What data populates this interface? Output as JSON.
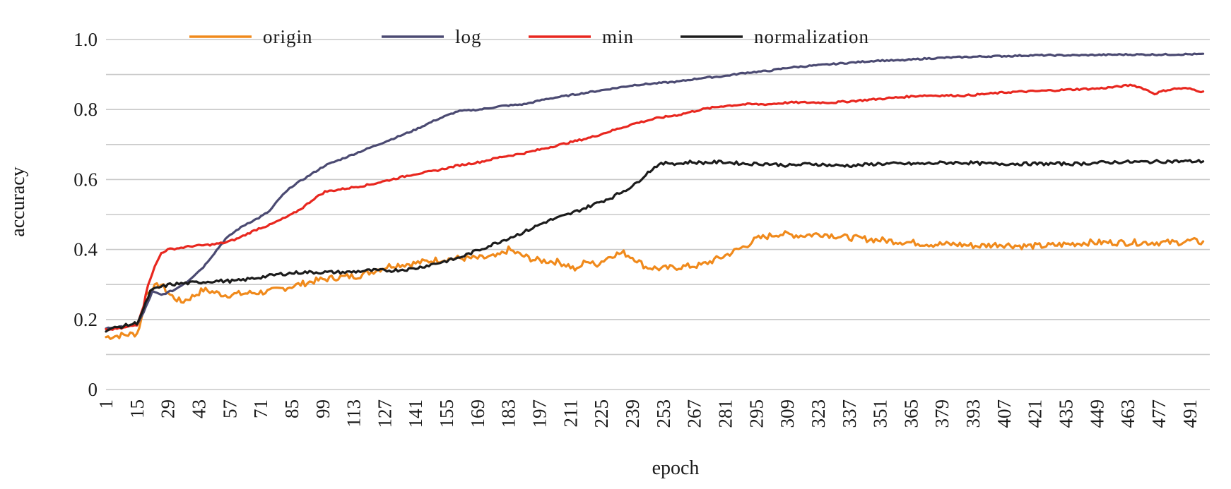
{
  "chart_data": {
    "type": "line",
    "xlabel": "epoch",
    "ylabel": "accuracy",
    "x_range": [
      1,
      500
    ],
    "ylim": [
      0,
      1.0
    ],
    "y_ticks": [
      0,
      0.2,
      0.4,
      0.6,
      0.8,
      1.0
    ],
    "y_tick_labels": [
      "0",
      "0.2",
      "0.4",
      "0.6",
      "0.8",
      "1.0"
    ],
    "x_tick_labels": [
      "1",
      "15",
      "29",
      "43",
      "57",
      "71",
      "85",
      "99",
      "113",
      "127",
      "141",
      "155",
      "169",
      "183",
      "197",
      "211",
      "225",
      "239",
      "253",
      "267",
      "281",
      "295",
      "309",
      "323",
      "337",
      "351",
      "365",
      "379",
      "393",
      "407",
      "421",
      "435",
      "449",
      "463",
      "477",
      "491"
    ],
    "grid": "horizontal",
    "legend_position": "top",
    "series": [
      {
        "name": "origin",
        "color": "#f08a1c",
        "points": [
          [
            1,
            0.15
          ],
          [
            8,
            0.155
          ],
          [
            15,
            0.16
          ],
          [
            17,
            0.2
          ],
          [
            19,
            0.27
          ],
          [
            22,
            0.29
          ],
          [
            26,
            0.3
          ],
          [
            30,
            0.27
          ],
          [
            35,
            0.25
          ],
          [
            40,
            0.265
          ],
          [
            45,
            0.285
          ],
          [
            55,
            0.27
          ],
          [
            65,
            0.275
          ],
          [
            75,
            0.28
          ],
          [
            85,
            0.295
          ],
          [
            95,
            0.31
          ],
          [
            105,
            0.32
          ],
          [
            115,
            0.325
          ],
          [
            125,
            0.345
          ],
          [
            130,
            0.355
          ],
          [
            140,
            0.36
          ],
          [
            150,
            0.37
          ],
          [
            160,
            0.375
          ],
          [
            170,
            0.375
          ],
          [
            178,
            0.38
          ],
          [
            183,
            0.4
          ],
          [
            188,
            0.385
          ],
          [
            195,
            0.37
          ],
          [
            205,
            0.365
          ],
          [
            210,
            0.355
          ],
          [
            214,
            0.34
          ],
          [
            218,
            0.37
          ],
          [
            222,
            0.355
          ],
          [
            226,
            0.37
          ],
          [
            230,
            0.385
          ],
          [
            235,
            0.39
          ],
          [
            240,
            0.375
          ],
          [
            245,
            0.35
          ],
          [
            252,
            0.345
          ],
          [
            260,
            0.35
          ],
          [
            270,
            0.355
          ],
          [
            280,
            0.38
          ],
          [
            290,
            0.41
          ],
          [
            295,
            0.43
          ],
          [
            305,
            0.445
          ],
          [
            315,
            0.44
          ],
          [
            325,
            0.445
          ],
          [
            335,
            0.435
          ],
          [
            345,
            0.43
          ],
          [
            355,
            0.425
          ],
          [
            365,
            0.42
          ],
          [
            375,
            0.415
          ],
          [
            385,
            0.415
          ],
          [
            395,
            0.41
          ],
          [
            405,
            0.415
          ],
          [
            415,
            0.41
          ],
          [
            425,
            0.41
          ],
          [
            435,
            0.415
          ],
          [
            445,
            0.42
          ],
          [
            455,
            0.42
          ],
          [
            465,
            0.42
          ],
          [
            475,
            0.42
          ],
          [
            485,
            0.42
          ],
          [
            492,
            0.425
          ],
          [
            497,
            0.42
          ]
        ]
      },
      {
        "name": "log",
        "color": "#4b4a72",
        "points": [
          [
            1,
            0.175
          ],
          [
            10,
            0.18
          ],
          [
            15,
            0.185
          ],
          [
            18,
            0.22
          ],
          [
            22,
            0.28
          ],
          [
            26,
            0.27
          ],
          [
            32,
            0.285
          ],
          [
            38,
            0.31
          ],
          [
            45,
            0.35
          ],
          [
            50,
            0.39
          ],
          [
            55,
            0.43
          ],
          [
            60,
            0.455
          ],
          [
            65,
            0.475
          ],
          [
            70,
            0.49
          ],
          [
            75,
            0.51
          ],
          [
            80,
            0.55
          ],
          [
            85,
            0.58
          ],
          [
            90,
            0.6
          ],
          [
            95,
            0.62
          ],
          [
            100,
            0.64
          ],
          [
            110,
            0.665
          ],
          [
            120,
            0.69
          ],
          [
            130,
            0.715
          ],
          [
            140,
            0.74
          ],
          [
            150,
            0.77
          ],
          [
            160,
            0.795
          ],
          [
            170,
            0.8
          ],
          [
            180,
            0.81
          ],
          [
            190,
            0.815
          ],
          [
            200,
            0.83
          ],
          [
            210,
            0.84
          ],
          [
            220,
            0.85
          ],
          [
            230,
            0.86
          ],
          [
            240,
            0.87
          ],
          [
            250,
            0.875
          ],
          [
            260,
            0.88
          ],
          [
            270,
            0.89
          ],
          [
            280,
            0.895
          ],
          [
            290,
            0.905
          ],
          [
            300,
            0.91
          ],
          [
            310,
            0.92
          ],
          [
            320,
            0.925
          ],
          [
            330,
            0.93
          ],
          [
            340,
            0.935
          ],
          [
            350,
            0.94
          ],
          [
            360,
            0.94
          ],
          [
            370,
            0.945
          ],
          [
            380,
            0.948
          ],
          [
            390,
            0.95
          ],
          [
            400,
            0.952
          ],
          [
            410,
            0.953
          ],
          [
            420,
            0.955
          ],
          [
            430,
            0.955
          ],
          [
            440,
            0.955
          ],
          [
            450,
            0.956
          ],
          [
            460,
            0.957
          ],
          [
            470,
            0.957
          ],
          [
            480,
            0.957
          ],
          [
            490,
            0.958
          ],
          [
            497,
            0.958
          ]
        ]
      },
      {
        "name": "min",
        "color": "#e8271f",
        "points": [
          [
            1,
            0.17
          ],
          [
            8,
            0.175
          ],
          [
            15,
            0.185
          ],
          [
            18,
            0.24
          ],
          [
            20,
            0.3
          ],
          [
            23,
            0.35
          ],
          [
            26,
            0.39
          ],
          [
            29,
            0.4
          ],
          [
            35,
            0.405
          ],
          [
            40,
            0.41
          ],
          [
            45,
            0.412
          ],
          [
            50,
            0.415
          ],
          [
            55,
            0.42
          ],
          [
            60,
            0.43
          ],
          [
            65,
            0.445
          ],
          [
            70,
            0.46
          ],
          [
            75,
            0.47
          ],
          [
            80,
            0.485
          ],
          [
            85,
            0.5
          ],
          [
            90,
            0.52
          ],
          [
            95,
            0.545
          ],
          [
            100,
            0.565
          ],
          [
            110,
            0.575
          ],
          [
            120,
            0.585
          ],
          [
            130,
            0.6
          ],
          [
            140,
            0.615
          ],
          [
            150,
            0.625
          ],
          [
            160,
            0.64
          ],
          [
            170,
            0.65
          ],
          [
            180,
            0.665
          ],
          [
            190,
            0.675
          ],
          [
            200,
            0.69
          ],
          [
            210,
            0.705
          ],
          [
            220,
            0.72
          ],
          [
            230,
            0.74
          ],
          [
            240,
            0.76
          ],
          [
            250,
            0.775
          ],
          [
            260,
            0.785
          ],
          [
            270,
            0.8
          ],
          [
            280,
            0.81
          ],
          [
            290,
            0.815
          ],
          [
            300,
            0.815
          ],
          [
            310,
            0.82
          ],
          [
            320,
            0.82
          ],
          [
            330,
            0.82
          ],
          [
            340,
            0.825
          ],
          [
            350,
            0.83
          ],
          [
            360,
            0.835
          ],
          [
            370,
            0.84
          ],
          [
            380,
            0.84
          ],
          [
            390,
            0.84
          ],
          [
            400,
            0.845
          ],
          [
            410,
            0.85
          ],
          [
            420,
            0.852
          ],
          [
            430,
            0.855
          ],
          [
            440,
            0.858
          ],
          [
            450,
            0.86
          ],
          [
            458,
            0.865
          ],
          [
            465,
            0.87
          ],
          [
            470,
            0.86
          ],
          [
            475,
            0.845
          ],
          [
            480,
            0.855
          ],
          [
            485,
            0.86
          ],
          [
            490,
            0.86
          ],
          [
            494,
            0.855
          ],
          [
            497,
            0.85
          ]
        ]
      },
      {
        "name": "normalization",
        "color": "#1c1c1c",
        "points": [
          [
            1,
            0.17
          ],
          [
            8,
            0.18
          ],
          [
            15,
            0.19
          ],
          [
            18,
            0.23
          ],
          [
            21,
            0.28
          ],
          [
            24,
            0.29
          ],
          [
            30,
            0.3
          ],
          [
            40,
            0.305
          ],
          [
            50,
            0.31
          ],
          [
            60,
            0.31
          ],
          [
            70,
            0.32
          ],
          [
            80,
            0.33
          ],
          [
            90,
            0.335
          ],
          [
            100,
            0.335
          ],
          [
            110,
            0.335
          ],
          [
            120,
            0.34
          ],
          [
            130,
            0.34
          ],
          [
            140,
            0.345
          ],
          [
            150,
            0.36
          ],
          [
            160,
            0.375
          ],
          [
            170,
            0.4
          ],
          [
            180,
            0.425
          ],
          [
            190,
            0.45
          ],
          [
            200,
            0.48
          ],
          [
            210,
            0.5
          ],
          [
            220,
            0.525
          ],
          [
            230,
            0.55
          ],
          [
            240,
            0.585
          ],
          [
            245,
            0.615
          ],
          [
            250,
            0.64
          ],
          [
            255,
            0.648
          ],
          [
            260,
            0.645
          ],
          [
            265,
            0.65
          ],
          [
            270,
            0.648
          ],
          [
            280,
            0.65
          ],
          [
            290,
            0.645
          ],
          [
            300,
            0.645
          ],
          [
            310,
            0.64
          ],
          [
            320,
            0.645
          ],
          [
            330,
            0.64
          ],
          [
            340,
            0.64
          ],
          [
            350,
            0.645
          ],
          [
            360,
            0.645
          ],
          [
            370,
            0.645
          ],
          [
            380,
            0.648
          ],
          [
            390,
            0.648
          ],
          [
            400,
            0.645
          ],
          [
            410,
            0.645
          ],
          [
            420,
            0.645
          ],
          [
            430,
            0.645
          ],
          [
            440,
            0.645
          ],
          [
            450,
            0.648
          ],
          [
            460,
            0.65
          ],
          [
            470,
            0.65
          ],
          [
            480,
            0.652
          ],
          [
            490,
            0.652
          ],
          [
            497,
            0.652
          ]
        ]
      }
    ]
  }
}
